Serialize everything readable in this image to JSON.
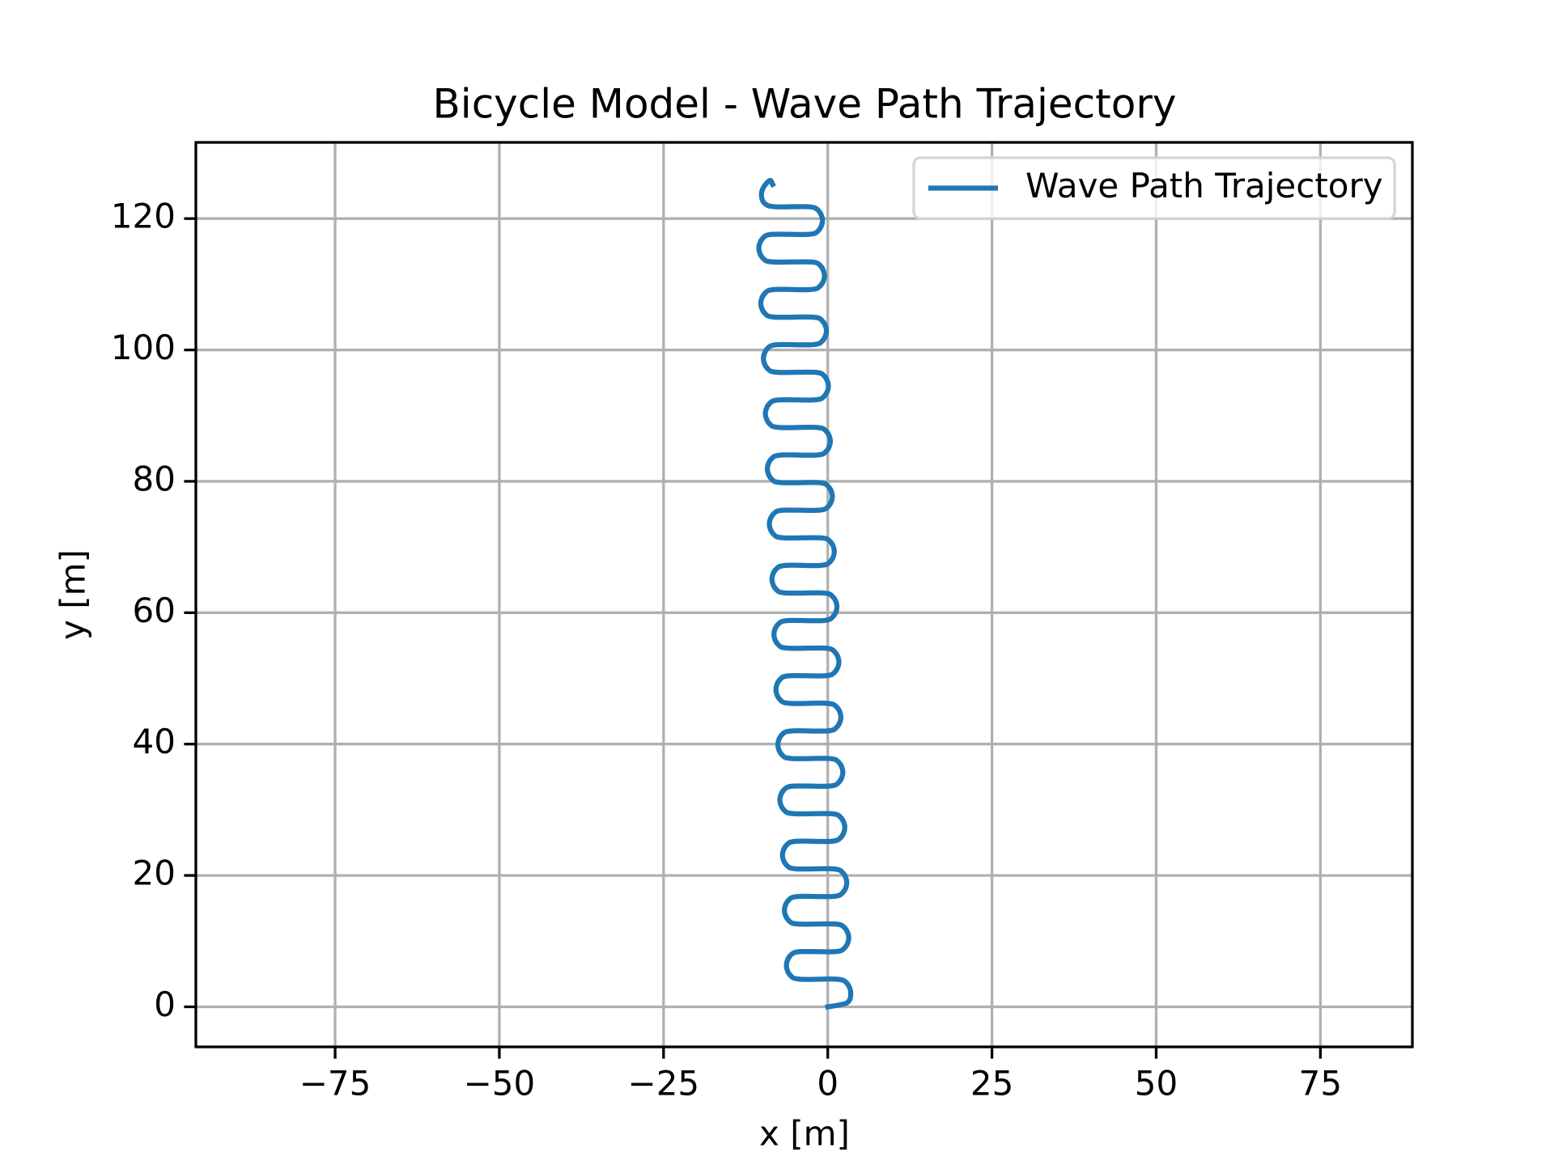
{
  "chart_data": {
    "type": "line",
    "title": "Bicycle Model - Wave Path Trajectory",
    "x_label": "x [m]",
    "y_label": "y [m]",
    "xlim": [
      -96.2,
      89.0
    ],
    "ylim": [
      -6.1,
      131.6
    ],
    "xticks": [
      {
        "value": -75,
        "label": "−75"
      },
      {
        "value": -50,
        "label": "−50"
      },
      {
        "value": -25,
        "label": "−25"
      },
      0,
      25,
      50,
      75
    ],
    "yticks": [
      0,
      20,
      40,
      60,
      80,
      100,
      120
    ],
    "grid": true,
    "legend": "upper right",
    "series": [
      {
        "name": "Wave Path Trajectory",
        "color": "#1f77b4",
        "x": [
          0,
          2.9,
          3.5,
          2.9,
          1.4,
          -4.2,
          -5.7,
          -6.3,
          -5.7,
          -4.2,
          1.1,
          2.6,
          3.2,
          2.6,
          1.1,
          -4.5,
          -6.0,
          -6.6,
          -6.0,
          -4.5,
          0.8,
          2.3,
          2.9,
          2.3,
          0.8,
          -4.8,
          -6.3,
          -6.9,
          -6.3,
          -4.8,
          0.5,
          2.0,
          2.6,
          2.0,
          0.5,
          -5.2,
          -6.7,
          -7.3,
          -6.7,
          -5.2,
          0.2,
          1.7,
          2.3,
          1.7,
          0.2,
          -5.5,
          -7.0,
          -7.6,
          -7.0,
          -5.5,
          -0.1,
          1.4,
          2.0,
          1.4,
          -0.1,
          -5.8,
          -7.3,
          -7.9,
          -7.3,
          -5.8,
          -0.4,
          1.1,
          1.7,
          1.1,
          -0.4,
          -6.1,
          -7.6,
          -8.2,
          -7.6,
          -6.1,
          -0.7,
          0.8,
          1.4,
          0.8,
          -0.7,
          -6.4,
          -7.9,
          -8.5,
          -7.9,
          -6.4,
          -1.1,
          0.4,
          1.0,
          0.4,
          -1.1,
          -6.8,
          -8.3,
          -8.9,
          -8.3,
          -6.8,
          -1.4,
          0.1,
          0.7,
          0.1,
          -1.4,
          -7.1,
          -8.6,
          -9.2,
          -8.6,
          -7.1,
          -1.7,
          -0.2,
          0.4,
          -0.2,
          -1.7,
          -7.4,
          -8.9,
          -9.5,
          -8.9,
          -7.4,
          -2.0,
          -0.5,
          0.1,
          -0.5,
          -2.0,
          -7.7,
          -9.2,
          -9.8,
          -9.2,
          -7.7,
          -2.3,
          -0.8,
          -0.2,
          -0.8,
          -2.3,
          -8.1,
          -9.6,
          -10.2,
          -9.6,
          -8.1,
          -2.6,
          -1.1,
          -0.5,
          -1.1,
          -2.6,
          -8.4,
          -9.9,
          -10.5,
          -9.9,
          -8.4,
          -2.9,
          -1.4,
          -0.8,
          -1.4,
          -2.9,
          -8.0,
          -9.6,
          -10.1,
          -9.7,
          -8.8,
          -8.4
        ],
        "values": [
          0,
          0.6,
          2.1,
          3.6,
          4.2,
          4.2,
          4.8,
          6.3,
          7.8,
          8.4,
          8.4,
          9.0,
          10.5,
          12.0,
          12.6,
          12.6,
          13.2,
          14.7,
          16.2,
          16.8,
          16.8,
          17.4,
          18.9,
          20.4,
          21.0,
          21.0,
          21.6,
          23.1,
          24.6,
          25.2,
          25.2,
          25.8,
          27.3,
          28.8,
          29.4,
          29.4,
          30.0,
          31.5,
          33.0,
          33.6,
          33.6,
          34.2,
          35.7,
          37.2,
          37.8,
          37.8,
          38.4,
          39.9,
          41.4,
          42.0,
          42.0,
          42.6,
          44.1,
          45.6,
          46.2,
          46.2,
          46.8,
          48.3,
          49.8,
          50.4,
          50.4,
          51.0,
          52.5,
          54.0,
          54.6,
          54.6,
          55.2,
          56.7,
          58.2,
          58.8,
          58.8,
          59.4,
          60.9,
          62.4,
          63.0,
          63.0,
          63.6,
          65.1,
          66.6,
          67.2,
          67.2,
          67.8,
          69.3,
          70.8,
          71.4,
          71.4,
          72.0,
          73.5,
          75.0,
          75.6,
          75.6,
          76.2,
          77.7,
          79.2,
          79.8,
          79.8,
          80.4,
          81.9,
          83.4,
          84.0,
          84.0,
          84.6,
          86.1,
          87.6,
          88.2,
          88.2,
          88.8,
          90.3,
          91.8,
          92.4,
          92.4,
          93.0,
          94.5,
          96.0,
          96.6,
          96.6,
          97.2,
          98.7,
          100.2,
          100.8,
          100.8,
          101.4,
          102.9,
          104.4,
          105.0,
          105.0,
          105.6,
          107.1,
          108.6,
          109.2,
          109.2,
          109.8,
          111.3,
          112.8,
          113.4,
          113.4,
          114.0,
          115.5,
          117.0,
          117.6,
          117.6,
          118.2,
          119.7,
          121.2,
          121.8,
          121.8,
          122.3,
          123.6,
          124.9,
          125.8,
          125.2
        ]
      }
    ]
  }
}
